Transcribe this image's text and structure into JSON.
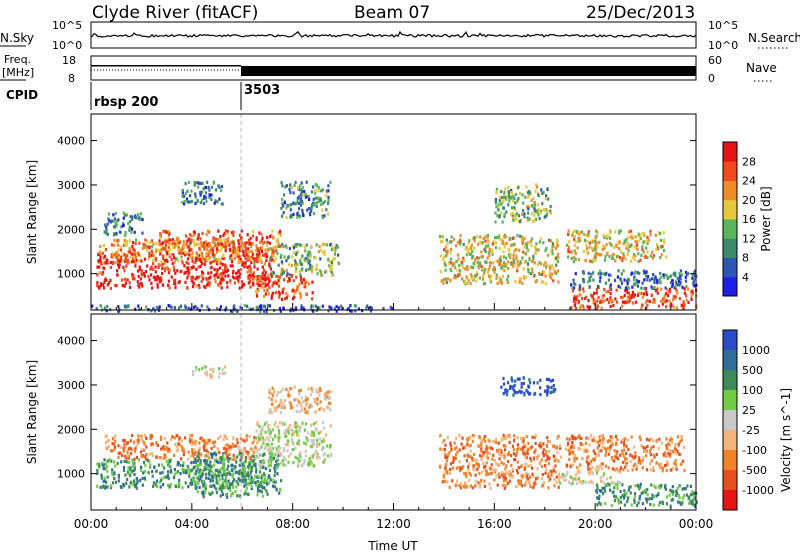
{
  "header": {
    "station": "Clyde River (fitACF)",
    "beam": "Beam 07",
    "date": "25/Dec/2013"
  },
  "status_panels": {
    "nsky_label": "N.Sky",
    "nsearch_label": "N.Search",
    "freq_label_line1": "Freq.",
    "freq_label_line2": "[MHz]",
    "nave_label": "Nave",
    "cpid_label": "CPID",
    "noise_ticks": [
      "10^5",
      "10^0"
    ],
    "freq_ticks": [
      "18",
      "8"
    ],
    "nave_ticks": [
      "60",
      "0"
    ],
    "cpid_entries": [
      {
        "time": "00:00",
        "name": "rbsp 200"
      },
      {
        "time": "06:00",
        "name": "3503"
      }
    ]
  },
  "chart_data": [
    {
      "type": "heatmap",
      "title": "",
      "xlabel": "",
      "ylabel": "Slant Range [km]",
      "x_ticks": [
        "00:00",
        "04:00",
        "08:00",
        "12:00",
        "16:00",
        "20:00",
        "00:00"
      ],
      "y_ticks": [
        1000,
        2000,
        3000,
        4000
      ],
      "xlim": [
        "00:00",
        "24:00"
      ],
      "ylim": [
        180,
        4600
      ],
      "colorbar": {
        "label": "Power [dB]",
        "ticks": [
          4,
          8,
          12,
          16,
          20,
          24,
          28
        ],
        "range": [
          0,
          32
        ],
        "colors": [
          "#1e1ee6",
          "#2f56b4",
          "#3c8a6e",
          "#5ab45a",
          "#e6c83c",
          "#f08c28",
          "#f04a1e",
          "#e61414"
        ]
      },
      "regions": [
        {
          "t0": 0.2,
          "t1": 7.2,
          "r0": 700,
          "r1": 1500,
          "v": 30
        },
        {
          "t0": 0.3,
          "t1": 6.8,
          "r0": 1250,
          "r1": 1800,
          "v": 22
        },
        {
          "t0": 2.5,
          "t1": 7.5,
          "r0": 1500,
          "r1": 2000,
          "v": 25
        },
        {
          "t0": 6.5,
          "t1": 8.8,
          "r0": 450,
          "r1": 1000,
          "v": 26
        },
        {
          "t0": 7.0,
          "t1": 9.8,
          "r0": 1000,
          "r1": 1700,
          "v": 14
        },
        {
          "t0": 7.5,
          "t1": 9.5,
          "r0": 2300,
          "r1": 3100,
          "v": 10
        },
        {
          "t0": 0.5,
          "t1": 2.0,
          "r0": 1900,
          "r1": 2400,
          "v": 9
        },
        {
          "t0": 3.5,
          "t1": 5.2,
          "r0": 2600,
          "r1": 3100,
          "v": 8
        },
        {
          "t0": 13.8,
          "t1": 18.5,
          "r0": 800,
          "r1": 1900,
          "v": 18
        },
        {
          "t0": 16.0,
          "t1": 18.2,
          "r0": 2200,
          "r1": 3050,
          "v": 14
        },
        {
          "t0": 18.8,
          "t1": 22.8,
          "r0": 1300,
          "r1": 2000,
          "v": 19
        },
        {
          "t0": 19.0,
          "t1": 24.0,
          "r0": 250,
          "r1": 700,
          "v": 27
        },
        {
          "t0": 19.0,
          "t1": 24.0,
          "r0": 700,
          "r1": 1100,
          "v": 7
        },
        {
          "t0": 0.0,
          "t1": 12.0,
          "r0": 180,
          "r1": 320,
          "v": 6
        }
      ]
    },
    {
      "type": "heatmap",
      "title": "",
      "xlabel": "Time UT",
      "ylabel": "Slant Range [km]",
      "x_ticks": [
        "00:00",
        "04:00",
        "08:00",
        "12:00",
        "16:00",
        "20:00",
        "00:00"
      ],
      "y_ticks": [
        1000,
        2000,
        3000,
        4000
      ],
      "xlim": [
        "00:00",
        "24:00"
      ],
      "ylim": [
        180,
        4600
      ],
      "colorbar": {
        "label": "Velocity [m s^-1]",
        "ticks": [
          "1000",
          "500",
          "100",
          "25",
          "-25",
          "-100",
          "-500",
          "-1000"
        ],
        "colors": [
          "#2a4cc8",
          "#2f6e9a",
          "#3c8c5a",
          "#6ecc46",
          "#c8c8c8",
          "#f5b47a",
          "#f08228",
          "#e6501e",
          "#e61414"
        ]
      },
      "regions": [
        {
          "t0": 0.2,
          "t1": 6.8,
          "r0": 700,
          "r1": 1350,
          "v": 2
        },
        {
          "t0": 0.5,
          "t1": 6.5,
          "r0": 1350,
          "r1": 1900,
          "v": 6
        },
        {
          "t0": 4.0,
          "t1": 7.5,
          "r0": 500,
          "r1": 1500,
          "v": 2
        },
        {
          "t0": 6.5,
          "t1": 9.5,
          "r0": 1200,
          "r1": 2200,
          "v": 4
        },
        {
          "t0": 7.0,
          "t1": 9.5,
          "r0": 2400,
          "r1": 3000,
          "v": 5
        },
        {
          "t0": 4.0,
          "t1": 5.3,
          "r0": 3200,
          "r1": 3450,
          "v": 4
        },
        {
          "t0": 13.8,
          "t1": 18.6,
          "r0": 700,
          "r1": 1900,
          "v": 6
        },
        {
          "t0": 16.2,
          "t1": 18.4,
          "r0": 2800,
          "r1": 3200,
          "v": 0
        },
        {
          "t0": 18.8,
          "t1": 23.5,
          "r0": 1100,
          "r1": 1900,
          "v": 6
        },
        {
          "t0": 20.0,
          "t1": 24.0,
          "r0": 300,
          "r1": 800,
          "v": 2
        },
        {
          "t0": 18.5,
          "t1": 21.0,
          "r0": 800,
          "r1": 1100,
          "v": 4
        }
      ]
    }
  ]
}
